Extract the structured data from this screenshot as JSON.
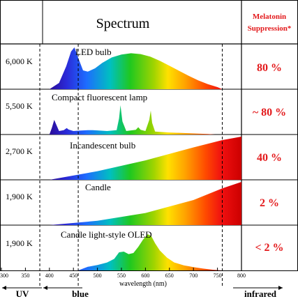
{
  "header": {
    "title": "Spectrum",
    "melatonin_line1": "Melatonin",
    "melatonin_line2": "Suppression*"
  },
  "rows": [
    {
      "temperature": "6,000 K",
      "source": "LED bulb",
      "suppression": "80 %"
    },
    {
      "temperature": "5,500 K",
      "source": "Compact fluorescent lamp",
      "suppression": "~ 80 %"
    },
    {
      "temperature": "2,700 K",
      "source": "Incandescent bulb",
      "suppression": "40 %"
    },
    {
      "temperature": "1,900 K",
      "source": "Candle",
      "suppression": "2 %"
    },
    {
      "temperature": "1,900 K",
      "source": "Candle light-style OLED",
      "suppression": "< 2 %"
    }
  ],
  "bands": {
    "uv": "UV",
    "blue": "blue",
    "infrared": "infrared"
  },
  "colors": {
    "uv": "#7030a0",
    "blue": "#1f5fa8",
    "infrared": "#e31a1c",
    "suppression": "#e31a1c"
  },
  "chart_data": {
    "type": "area",
    "xlabel": "wavelength (nm)",
    "xlim": [
      300,
      800
    ],
    "xticks": [
      300,
      350,
      400,
      450,
      500,
      550,
      600,
      650,
      700,
      750,
      800
    ],
    "xtick_labels": [
      "300",
      "350",
      "400",
      "450",
      "500",
      "550",
      "600",
      "650",
      "700",
      "750",
      "800"
    ],
    "dividers_nm": [
      380,
      460,
      760
    ],
    "y_scale": "relative intensity (0-1, unlabeled)",
    "series": [
      {
        "x": [
          400,
          420,
          435,
          445,
          452,
          460,
          470,
          480,
          495,
          510,
          530,
          550,
          570,
          590,
          610,
          630,
          650,
          670,
          690,
          710,
          730,
          750,
          760
        ],
        "values": [
          0.0,
          0.15,
          0.55,
          0.9,
          1.0,
          0.75,
          0.45,
          0.42,
          0.5,
          0.63,
          0.76,
          0.83,
          0.86,
          0.84,
          0.78,
          0.68,
          0.56,
          0.44,
          0.32,
          0.21,
          0.12,
          0.05,
          0.0
        ]
      },
      {
        "x": [
          400,
          405,
          410,
          420,
          430,
          436,
          440,
          450,
          460,
          470,
          480,
          490,
          500,
          520,
          540,
          545,
          548,
          552,
          560,
          580,
          585,
          590,
          600,
          608,
          611,
          614,
          620,
          630,
          650,
          680,
          710,
          730,
          745
        ],
        "values": [
          0.0,
          0.22,
          0.5,
          0.12,
          0.15,
          0.22,
          0.17,
          0.12,
          0.13,
          0.14,
          0.15,
          0.15,
          0.14,
          0.12,
          0.15,
          0.55,
          1.0,
          0.45,
          0.12,
          0.16,
          0.25,
          0.16,
          0.12,
          0.5,
          0.82,
          0.4,
          0.1,
          0.09,
          0.07,
          0.05,
          0.03,
          0.02,
          0.0
        ]
      },
      {
        "x": [
          400,
          500,
          600,
          700,
          760,
          800
        ],
        "values": [
          0.0,
          0.2,
          0.45,
          0.75,
          0.92,
          1.0
        ]
      },
      {
        "x": [
          400,
          500,
          600,
          700,
          760,
          800
        ],
        "values": [
          0.0,
          0.1,
          0.28,
          0.58,
          0.85,
          1.0
        ]
      },
      {
        "x": [
          460,
          480,
          500,
          520,
          535,
          545,
          555,
          565,
          575,
          585,
          595,
          605,
          612,
          620,
          630,
          645,
          660,
          680,
          700,
          720,
          740,
          760
        ],
        "values": [
          0.0,
          0.1,
          0.15,
          0.22,
          0.32,
          0.5,
          0.52,
          0.45,
          0.48,
          0.65,
          0.85,
          1.0,
          0.95,
          0.75,
          0.55,
          0.35,
          0.22,
          0.14,
          0.09,
          0.05,
          0.02,
          0.0
        ]
      }
    ]
  }
}
